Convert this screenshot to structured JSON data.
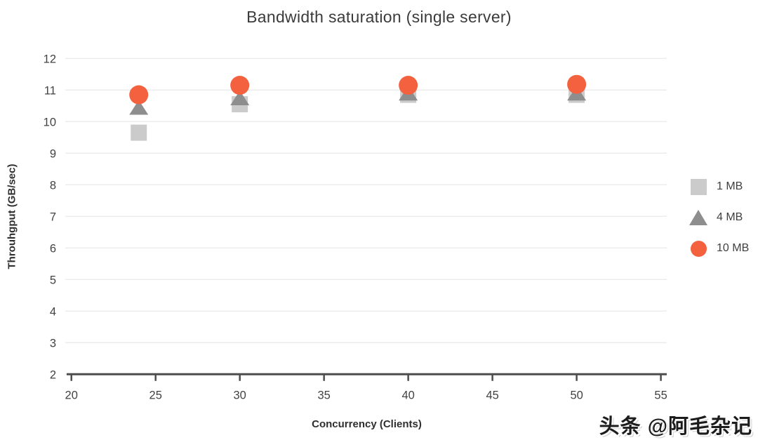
{
  "watermark": "头条 @阿毛杂记",
  "chart_data": {
    "type": "scatter",
    "title": "Bandwidth saturation (single server)",
    "xlabel": "Concurrency (Clients)",
    "ylabel": "Throuhgput (GB/sec)",
    "xlim": [
      19.72,
      55.35
    ],
    "ylim": [
      2,
      12
    ],
    "xticks": [
      20,
      25,
      30,
      35,
      40,
      45,
      50,
      55
    ],
    "yticks": [
      2,
      3,
      4,
      5,
      6,
      7,
      8,
      9,
      10,
      11,
      12
    ],
    "grid": "horizontal",
    "legend_position": "right",
    "series": [
      {
        "name": "1 MB",
        "marker": "square",
        "color": "#cbcbcb",
        "points": [
          [
            24,
            9.65
          ],
          [
            30,
            10.55
          ],
          [
            40,
            10.85
          ],
          [
            50,
            10.85
          ]
        ]
      },
      {
        "name": "4 MB",
        "marker": "triangle",
        "color": "#8e8e8e",
        "points": [
          [
            24,
            10.45
          ],
          [
            30,
            10.75
          ],
          [
            40,
            10.9
          ],
          [
            50,
            10.9
          ]
        ]
      },
      {
        "name": "10 MB",
        "marker": "circle",
        "color": "#f4613f",
        "points": [
          [
            24,
            10.85
          ],
          [
            30,
            11.15
          ],
          [
            40,
            11.15
          ],
          [
            50,
            11.18
          ]
        ]
      }
    ],
    "colors": {
      "axis": "#4d4d4d",
      "grid": "#ececec",
      "tick_text": "#424242",
      "title_text": "#3b3b3b"
    }
  }
}
